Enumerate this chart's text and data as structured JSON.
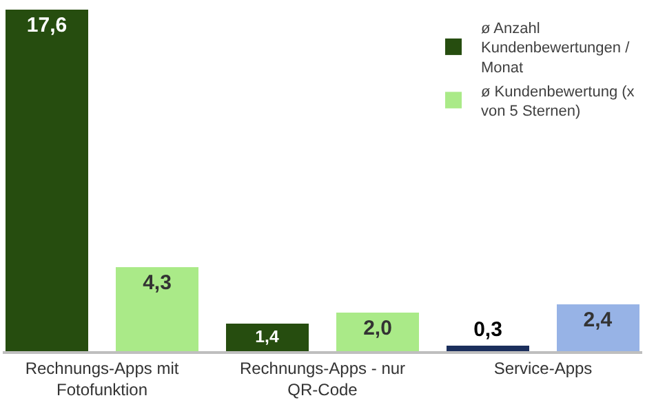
{
  "chart_data": {
    "type": "bar",
    "relative": false,
    "legend": "top right",
    "categories": [
      "Rechnungs-Apps mit Fotofunktion",
      "Rechnungs-Apps - nur QR-Code",
      "Service-Apps"
    ],
    "series": [
      {
        "name": "ø Anzahl Kundenbewertungen / Monat",
        "colors": [
          "#264d0f",
          "#264d0f",
          "#1b2f5c"
        ],
        "values": [
          17.6,
          1.4,
          0.3
        ],
        "value_labels": [
          "17,6",
          "1,4",
          "0,3"
        ]
      },
      {
        "name": "ø Kundenbewertung (x von 5 Sternen)",
        "colors": [
          "#aaea88",
          "#aaea88",
          "#97b3e6"
        ],
        "values": [
          4.3,
          2.0,
          2.4
        ],
        "value_labels": [
          "4,3",
          "2,0",
          "2,4"
        ]
      }
    ]
  }
}
